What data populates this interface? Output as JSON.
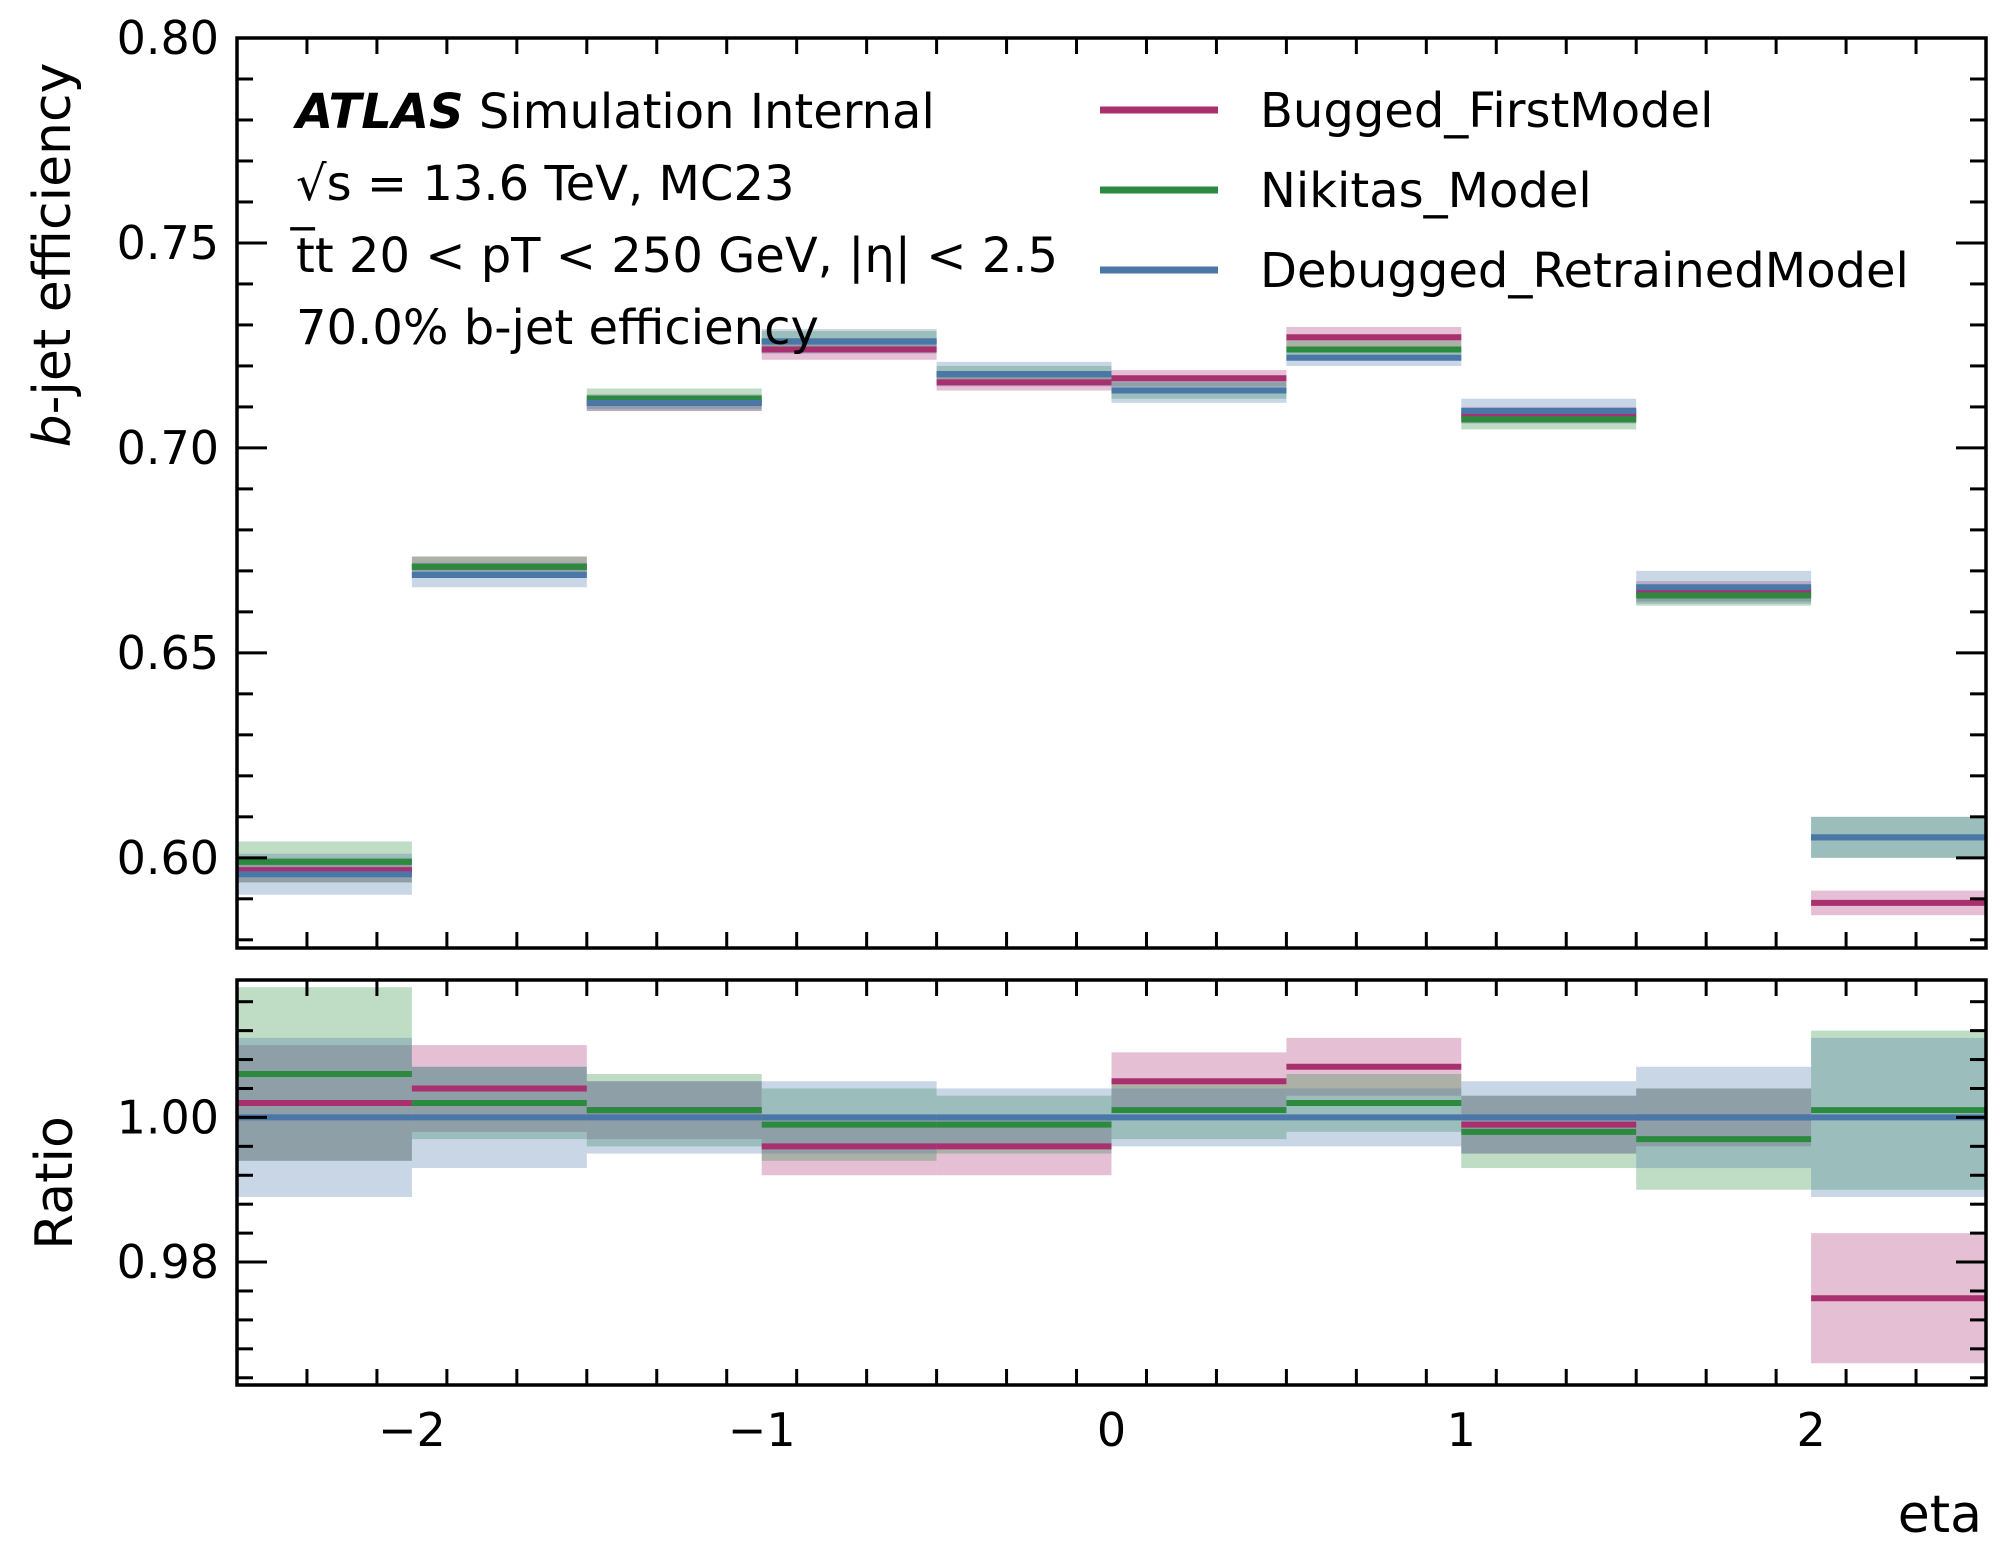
{
  "chart_data": {
    "type": "line",
    "style": "step",
    "x_bin_edges": [
      -2.5,
      -2.0,
      -1.5,
      -1.0,
      -0.5,
      0.0,
      0.5,
      1.0,
      1.5,
      2.0,
      2.5
    ],
    "xlabel": "eta",
    "xlim": [
      -2.5,
      2.5
    ],
    "x_ticks": [
      -2,
      -1,
      0,
      1,
      2
    ],
    "x_tick_labels": [
      "−2",
      "−1",
      "0",
      "1",
      "2"
    ],
    "legend": {
      "placement": "top-right"
    },
    "annotation": {
      "atlas": "ATLAS",
      "status": "Simulation Internal",
      "line2": "√s = 13.6 TeV, MC23",
      "line3": "t̅t 20 < pT < 250 GeV, |η| < 2.5",
      "line4": "70.0% b-jet efficiency"
    },
    "top_panel": {
      "ylabel": "b-jet efficiency",
      "ylim": [
        0.578,
        0.8
      ],
      "y_ticks": [
        0.6,
        0.65,
        0.7,
        0.75,
        0.8
      ],
      "y_tick_labels": [
        "0.60",
        "0.65",
        "0.70",
        "0.75",
        "0.80"
      ],
      "series": [
        {
          "name": "Bugged_FirstModel",
          "color": "#a8306f",
          "values": [
            0.597,
            0.671,
            0.711,
            0.724,
            0.716,
            0.717,
            0.727,
            0.708,
            0.665,
            0.589
          ],
          "unc": [
            0.003,
            0.0025,
            0.002,
            0.0025,
            0.002,
            0.002,
            0.0025,
            0.002,
            0.0025,
            0.003
          ]
        },
        {
          "name": "Nikitas_Model",
          "color": "#2b8a3e",
          "values": [
            0.599,
            0.671,
            0.712,
            0.726,
            0.718,
            0.714,
            0.724,
            0.707,
            0.664,
            0.605
          ],
          "unc": [
            0.005,
            0.0025,
            0.0025,
            0.0025,
            0.002,
            0.002,
            0.0025,
            0.0025,
            0.0025,
            0.005
          ]
        },
        {
          "name": "Debugged_RetrainedModel",
          "color": "#4a76a8",
          "values": [
            0.596,
            0.669,
            0.711,
            0.726,
            0.718,
            0.714,
            0.722,
            0.709,
            0.666,
            0.605
          ],
          "unc": [
            0.005,
            0.003,
            0.002,
            0.003,
            0.003,
            0.003,
            0.002,
            0.003,
            0.004,
            0.005
          ]
        }
      ]
    },
    "ratio_panel": {
      "ylabel": "Ratio",
      "ylim": [
        0.963,
        1.019
      ],
      "y_ticks": [
        0.98,
        1.0
      ],
      "y_tick_labels": [
        "0.98",
        "1.00"
      ],
      "series": [
        {
          "name": "Bugged_FirstModel",
          "color": "#a8306f",
          "values": [
            1.002,
            1.004,
            1.001,
            0.996,
            0.996,
            1.005,
            1.007,
            0.999,
            1.0,
            0.975
          ],
          "unc": [
            0.008,
            0.006,
            0.004,
            0.004,
            0.004,
            0.004,
            0.004,
            0.004,
            0.004,
            0.009
          ]
        },
        {
          "name": "Nikitas_Model",
          "color": "#2b8a3e",
          "values": [
            1.006,
            1.002,
            1.001,
            0.999,
            0.999,
            1.001,
            1.002,
            0.998,
            0.997,
            1.001
          ],
          "unc": [
            0.012,
            0.005,
            0.005,
            0.005,
            0.004,
            0.004,
            0.004,
            0.005,
            0.007,
            0.011
          ]
        },
        {
          "name": "Debugged_RetrainedModel",
          "color": "#4a76a8",
          "values": [
            1.0,
            1.0,
            1.0,
            1.0,
            1.0,
            1.0,
            1.0,
            1.0,
            1.0,
            1.0
          ],
          "unc": [
            0.011,
            0.007,
            0.005,
            0.005,
            0.004,
            0.004,
            0.004,
            0.005,
            0.007,
            0.011
          ]
        }
      ]
    }
  }
}
